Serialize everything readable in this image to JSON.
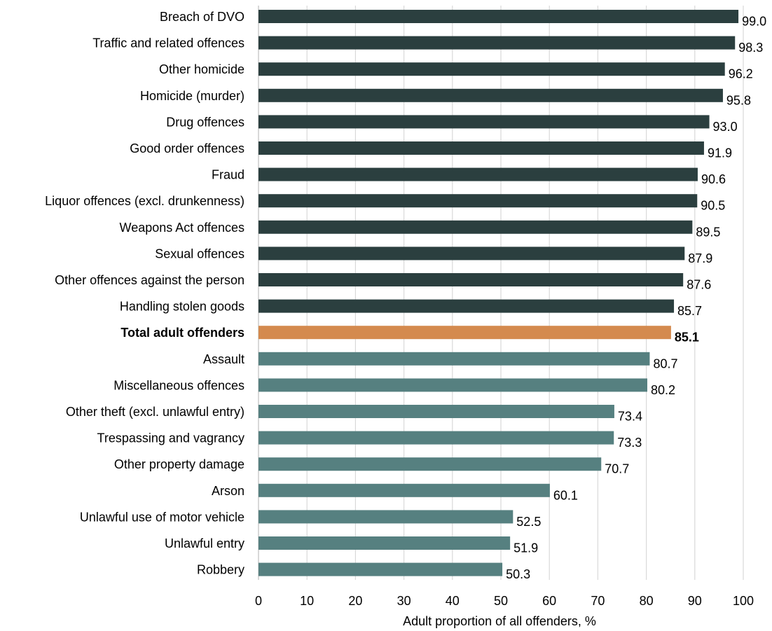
{
  "chart_data": {
    "type": "bar",
    "orientation": "horizontal",
    "xlabel": "Adult proportion of all offenders, %",
    "xlim": [
      0,
      100
    ],
    "xticks": [
      0,
      10,
      20,
      30,
      40,
      50,
      60,
      70,
      80,
      90,
      100
    ],
    "grid": true,
    "categories": [
      "Breach of DVO",
      "Traffic and related offences",
      "Other homicide",
      "Homicide (murder)",
      "Drug offences",
      "Good order offences",
      "Fraud",
      "Liquor offences (excl. drunkenness)",
      "Weapons Act offences",
      "Sexual offences",
      "Other offences against the person",
      "Handling stolen goods",
      "Total adult offenders",
      "Assault",
      "Miscellaneous offences",
      "Other theft (excl. unlawful entry)",
      "Trespassing and vagrancy",
      "Other property damage",
      "Arson",
      "Unlawful use of motor vehicle",
      "Unlawful entry",
      "Robbery"
    ],
    "values": [
      99.0,
      98.3,
      96.2,
      95.8,
      93.0,
      91.9,
      90.6,
      90.5,
      89.5,
      87.9,
      87.6,
      85.7,
      85.1,
      80.7,
      80.2,
      73.4,
      73.3,
      70.7,
      60.1,
      52.5,
      51.9,
      50.3
    ],
    "value_labels": [
      "99.0",
      "98.3",
      "96.2",
      "95.8",
      "93.0",
      "91.9",
      "90.6",
      "90.5",
      "89.5",
      "87.9",
      "87.6",
      "85.7",
      "85.1",
      "80.7",
      "80.2",
      "73.4",
      "73.3",
      "70.7",
      "60.1",
      "52.5",
      "51.9",
      "50.3"
    ],
    "highlight_index": 12,
    "colors": {
      "above_total": "#2b3f3f",
      "total": "#d48a4e",
      "below_total": "#568080"
    }
  }
}
